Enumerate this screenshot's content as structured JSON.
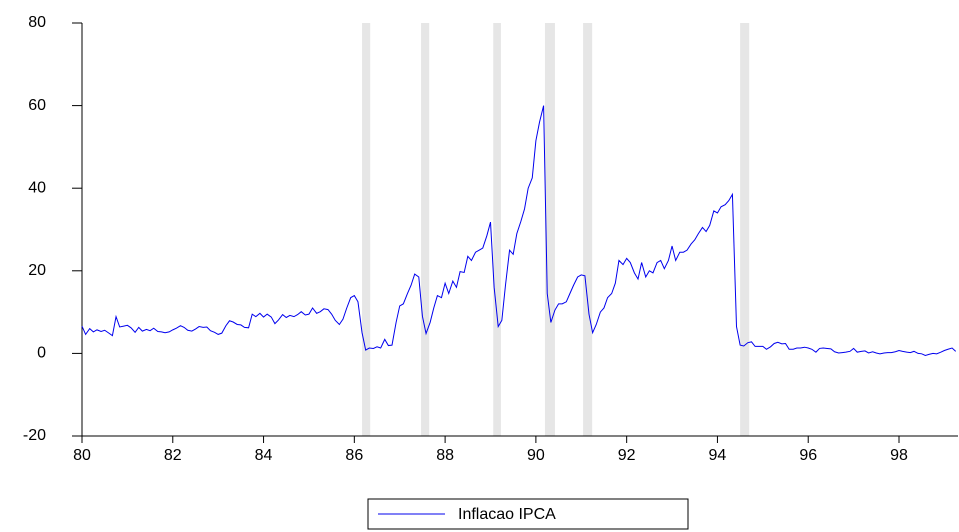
{
  "chart_data": {
    "type": "line",
    "series": [
      {
        "name": "Inflacao IPCA",
        "color": "#0000ee",
        "values": [
          6.6,
          4.6,
          6.0,
          5.2,
          5.7,
          5.3,
          5.6,
          5.0,
          4.3,
          8.9,
          6.4,
          6.6,
          6.8,
          6.2,
          5.1,
          6.3,
          5.4,
          5.8,
          5.5,
          6.1,
          5.3,
          5.2,
          5.0,
          5.2,
          5.7,
          6.1,
          6.7,
          6.3,
          5.6,
          5.4,
          5.9,
          6.5,
          6.3,
          6.4,
          5.5,
          5.1,
          4.6,
          4.9,
          6.7,
          7.9,
          7.6,
          7.0,
          6.9,
          6.3,
          6.2,
          9.5,
          8.9,
          9.7,
          8.8,
          9.5,
          8.8,
          7.2,
          8.1,
          9.4,
          8.7,
          9.2,
          8.9,
          9.4,
          10.1,
          9.3,
          9.5,
          11.0,
          9.7,
          10.1,
          10.8,
          10.6,
          9.5,
          8.0,
          7.0,
          8.3,
          10.9,
          13.5,
          14.0,
          12.5,
          5.0,
          0.8,
          1.3,
          1.2,
          1.6,
          1.3,
          3.4,
          1.9,
          2.0,
          7.5,
          11.5,
          12.0,
          14.5,
          16.5,
          19.2,
          18.5,
          9.0,
          4.8,
          7.5,
          11.0,
          14.0,
          13.5,
          17.0,
          14.5,
          17.5,
          16.0,
          19.8,
          19.6,
          23.5,
          22.5,
          24.5,
          25.0,
          25.5,
          28.5,
          31.8,
          16.0,
          6.5,
          8.0,
          16.5,
          25.0,
          24.0,
          29.0,
          32.0,
          35.0,
          40.0,
          42.5,
          51.5,
          56.0,
          60.0,
          14.5,
          7.5,
          10.5,
          12.0,
          12.0,
          12.5,
          14.5,
          16.5,
          18.5,
          19.0,
          18.8,
          9.5,
          5.0,
          7.0,
          10.0,
          11.0,
          13.5,
          14.5,
          17.0,
          22.5,
          21.5,
          23.0,
          22.0,
          19.5,
          18.0,
          22.0,
          18.5,
          20.0,
          19.5,
          22.0,
          22.5,
          20.5,
          22.5,
          26.0,
          22.5,
          24.5,
          24.5,
          25.0,
          26.5,
          27.5,
          29.0,
          30.5,
          29.5,
          31.0,
          34.5,
          34.0,
          35.5,
          36.0,
          37.0,
          38.5,
          6.5,
          2.0,
          1.8,
          2.6,
          2.8,
          1.7,
          1.7,
          1.7,
          1.0,
          1.6,
          2.4,
          2.7,
          2.3,
          2.4,
          1.0,
          1.0,
          1.3,
          1.3,
          1.5,
          1.3,
          1.0,
          0.3,
          1.2,
          1.3,
          1.2,
          1.1,
          0.4,
          0.1,
          0.2,
          0.3,
          0.5,
          1.2,
          0.3,
          0.5,
          0.6,
          0.1,
          0.4,
          0.1,
          -0.1,
          0.1,
          0.2,
          0.2,
          0.4,
          0.7,
          0.5,
          0.3,
          0.2,
          0.5,
          0.0,
          -0.1,
          -0.5,
          -0.2,
          0.0,
          -0.1,
          0.3,
          0.7,
          1.0,
          1.3,
          0.5
        ]
      }
    ],
    "x": [
      80,
      80.08,
      80.17,
      80.25,
      80.33,
      80.42,
      80.5,
      80.58,
      80.67,
      80.75,
      80.83,
      80.92,
      81,
      81.08,
      81.17,
      81.25,
      81.33,
      81.42,
      81.5,
      81.58,
      81.67,
      81.75,
      81.83,
      81.92,
      82,
      82.08,
      82.17,
      82.25,
      82.33,
      82.42,
      82.5,
      82.58,
      82.67,
      82.75,
      82.83,
      82.92,
      83,
      83.08,
      83.17,
      83.25,
      83.33,
      83.42,
      83.5,
      83.58,
      83.67,
      83.75,
      83.83,
      83.92,
      84,
      84.08,
      84.17,
      84.25,
      84.33,
      84.42,
      84.5,
      84.58,
      84.67,
      84.75,
      84.83,
      84.92,
      85,
      85.08,
      85.17,
      85.25,
      85.33,
      85.42,
      85.5,
      85.58,
      85.67,
      85.75,
      85.83,
      85.92,
      86,
      86.08,
      86.17,
      86.25,
      86.33,
      86.42,
      86.5,
      86.58,
      86.67,
      86.75,
      86.83,
      86.92,
      87,
      87.08,
      87.17,
      87.25,
      87.33,
      87.42,
      87.5,
      87.58,
      87.67,
      87.75,
      87.83,
      87.92,
      88,
      88.08,
      88.17,
      88.25,
      88.33,
      88.42,
      88.5,
      88.58,
      88.67,
      88.75,
      88.83,
      88.92,
      89,
      89.08,
      89.17,
      89.25,
      89.33,
      89.42,
      89.5,
      89.58,
      89.67,
      89.75,
      89.83,
      89.92,
      90,
      90.08,
      90.17,
      90.25,
      90.33,
      90.42,
      90.5,
      90.58,
      90.67,
      90.75,
      90.83,
      90.92,
      91,
      91.08,
      91.17,
      91.25,
      91.33,
      91.42,
      91.5,
      91.58,
      91.67,
      91.75,
      91.83,
      91.92,
      92,
      92.08,
      92.17,
      92.25,
      92.33,
      92.42,
      92.5,
      92.58,
      92.67,
      92.75,
      92.83,
      92.92,
      93,
      93.08,
      93.17,
      93.25,
      93.33,
      93.42,
      93.5,
      93.58,
      93.67,
      93.75,
      93.83,
      93.92,
      94,
      94.08,
      94.17,
      94.25,
      94.33,
      94.42,
      94.5,
      94.58,
      94.67,
      94.75,
      94.83,
      94.92,
      95,
      95.08,
      95.17,
      95.25,
      95.33,
      95.42,
      95.5,
      95.58,
      95.67,
      95.75,
      95.83,
      95.92,
      96,
      96.08,
      96.17,
      96.25,
      96.33,
      96.42,
      96.5,
      96.58,
      96.67,
      96.75,
      96.83,
      96.92,
      97,
      97.08,
      97.17,
      97.25,
      97.33,
      97.42,
      97.5,
      97.58,
      97.67,
      97.75,
      97.83,
      97.92,
      98,
      98.08,
      98.17,
      98.25,
      98.33,
      98.42,
      98.5,
      98.58,
      98.67,
      98.75,
      98.83,
      98.92,
      99,
      99.08,
      99.17,
      99.25
    ],
    "shaded_ranges": [
      [
        86.17,
        86.35
      ],
      [
        87.47,
        87.65
      ],
      [
        89.06,
        89.23
      ],
      [
        90.2,
        90.42
      ],
      [
        91.04,
        91.24
      ],
      [
        94.5,
        94.7
      ]
    ],
    "shade_color": "#e6e6e6",
    "xlim": [
      80,
      99.3
    ],
    "ylim": [
      -20,
      80
    ],
    "xticks": [
      80,
      82,
      84,
      86,
      88,
      90,
      92,
      94,
      96,
      98
    ],
    "yticks": [
      -20,
      0,
      20,
      40,
      60,
      80
    ],
    "legend": "bottom"
  }
}
